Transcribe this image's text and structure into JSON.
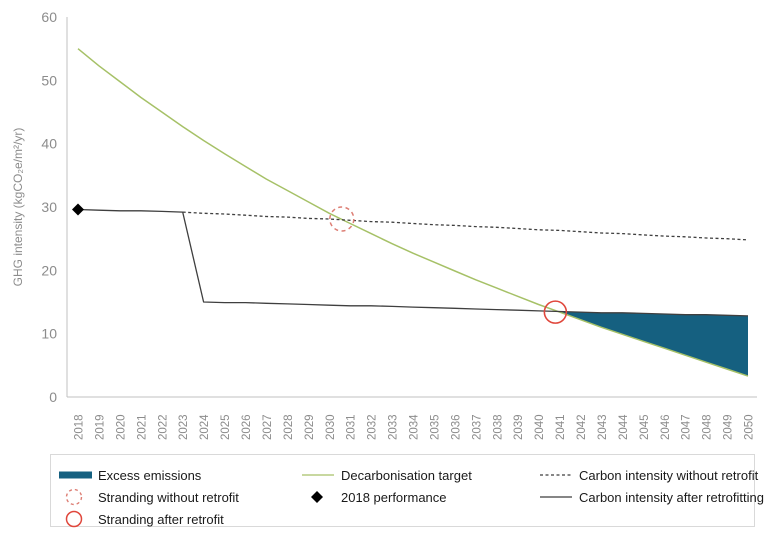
{
  "chart_data": {
    "type": "line",
    "title": "",
    "xlabel": "",
    "ylabel": "GHG intensity (kgCO₂e/m²/yr)",
    "ylim": [
      0,
      60
    ],
    "yticks": [
      0,
      10,
      20,
      30,
      40,
      50,
      60
    ],
    "grid": false,
    "axis_color": "#c0c0c0",
    "tick_color": "#8c8c8c",
    "years": [
      2018,
      2019,
      2020,
      2021,
      2022,
      2023,
      2024,
      2025,
      2026,
      2027,
      2028,
      2029,
      2030,
      2031,
      2032,
      2033,
      2034,
      2035,
      2036,
      2037,
      2038,
      2039,
      2040,
      2041,
      2042,
      2043,
      2044,
      2045,
      2046,
      2047,
      2048,
      2049,
      2050
    ],
    "series": [
      {
        "name": "Decarbonisation target",
        "color": "#a6c167",
        "style": "solid",
        "width": 1.5,
        "values": [
          55.0,
          52.3,
          49.8,
          47.3,
          45.0,
          42.7,
          40.5,
          38.4,
          36.4,
          34.4,
          32.6,
          30.8,
          29.0,
          27.4,
          25.8,
          24.2,
          22.7,
          21.3,
          19.9,
          18.5,
          17.2,
          15.9,
          14.6,
          13.4,
          12.2,
          11.0,
          9.9,
          8.8,
          7.7,
          6.6,
          5.5,
          4.4,
          3.3
        ]
      },
      {
        "name": "Carbon intensity without retrofit",
        "color": "#3f3f3f",
        "style": "dashed",
        "width": 1.3,
        "values": [
          null,
          null,
          null,
          null,
          null,
          29.2,
          29.0,
          28.9,
          28.7,
          28.5,
          28.4,
          28.2,
          28.1,
          27.9,
          27.7,
          27.6,
          27.4,
          27.2,
          27.1,
          26.9,
          26.8,
          26.6,
          26.4,
          26.3,
          26.1,
          25.9,
          25.8,
          25.6,
          25.4,
          25.3,
          25.1,
          25.0,
          24.8
        ]
      },
      {
        "name": "Carbon intensity after retrofitting",
        "color": "#3f3f3f",
        "style": "solid",
        "width": 1.3,
        "values": [
          29.6,
          29.5,
          29.4,
          29.4,
          29.3,
          29.2,
          15.0,
          14.9,
          14.9,
          14.8,
          14.7,
          14.6,
          14.5,
          14.4,
          14.4,
          14.3,
          14.2,
          14.1,
          14.0,
          13.9,
          13.8,
          13.7,
          13.6,
          13.5,
          13.4,
          13.3,
          13.3,
          13.2,
          13.1,
          13.0,
          13.0,
          12.9,
          12.8
        ]
      }
    ],
    "markers": {
      "performance_2018": {
        "label": "2018 performance",
        "year": 2018,
        "value": 29.6,
        "shape": "diamond",
        "color": "#000000"
      },
      "stranding_without_retrofit": {
        "label": "Stranding without retrofit",
        "year": 2030.6,
        "value": 28.1,
        "shape": "circle-dashed",
        "color": "#dd7e74",
        "radius": 12
      },
      "stranding_after_retrofit": {
        "label": "Stranding after retrofit",
        "year": 2040.8,
        "value": 13.4,
        "shape": "circle-solid",
        "color": "#e0473c",
        "radius": 11
      }
    },
    "excess_emissions": {
      "label": "Excess emissions",
      "color": "#156080",
      "from_year": 2040.9,
      "to_year": 2050,
      "between": [
        "Carbon intensity after retrofitting",
        "Decarbonisation target"
      ]
    }
  },
  "legend": {
    "items": [
      {
        "label": "Excess emissions",
        "swatch": "bar",
        "color": "#156080"
      },
      {
        "label": "Stranding without retrofit",
        "swatch": "circle-dashed",
        "color": "#dd7e74"
      },
      {
        "label": "Stranding after retrofit",
        "swatch": "circle-solid",
        "color": "#e0473c"
      },
      {
        "label": "Decarbonisation target",
        "swatch": "line-solid",
        "color": "#a6c167"
      },
      {
        "label": "2018 performance",
        "swatch": "diamond",
        "color": "#000000"
      },
      {
        "label": "Carbon intensity without retrofit",
        "swatch": "line-dashed",
        "color": "#3f3f3f"
      },
      {
        "label": "Carbon intensity after retrofitting",
        "swatch": "line-solid",
        "color": "#3f3f3f"
      }
    ]
  }
}
